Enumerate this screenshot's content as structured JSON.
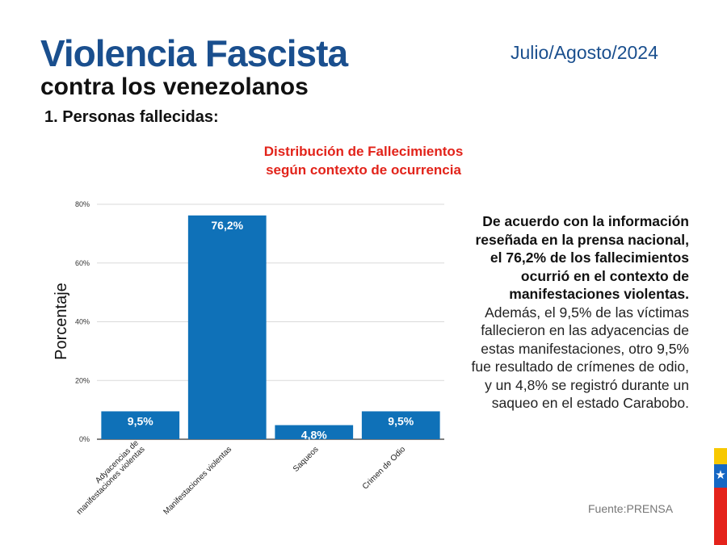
{
  "header": {
    "title": "Violencia Fascista",
    "subtitle": "contra los venezolanos",
    "date": "Julio/Agosto/2024",
    "section": "1. Personas fallecidas:"
  },
  "chart_data": {
    "type": "bar",
    "title_line1": "Distribución de Fallecimientos",
    "title_line2": "según contexto de ocurrencia",
    "categories": [
      "Adyacencias de manifestaciones violentas",
      "Manifestaciones violentas",
      "Saqueos",
      "Crimen de Odio"
    ],
    "category_lines": [
      [
        "Adyacencias de",
        "manifestaciones violentas"
      ],
      [
        "Manifestaciones violentas"
      ],
      [
        "Saqueos"
      ],
      [
        "Crimen de Odio"
      ]
    ],
    "values": [
      9.5,
      76.2,
      4.8,
      9.5
    ],
    "value_labels": [
      "9,5%",
      "76,2%",
      "4,8%",
      "9,5%"
    ],
    "ylabel": "Porcentaje",
    "xlabel": "",
    "ylim": [
      0,
      80
    ],
    "yticks": [
      0,
      20,
      40,
      60,
      80
    ],
    "ytick_labels": [
      "0%",
      "20%",
      "40%",
      "60%",
      "80%"
    ],
    "grid": true,
    "bar_color": "#0f71b8"
  },
  "body_text": {
    "bold": "De acuerdo con la información reseñada en la prensa nacional, el 76,2% de los fallecimientos ocurrió en el contexto de manifestaciones violentas.",
    "normal": " Además, el 9,5% de las víctimas fallecieron en las adyacencias de estas manifestaciones, otro 9,5% fue resultado de crímenes de odio, y un 4,8% se registró durante un saqueo en el estado Carabobo."
  },
  "source": "Fuente:PRENSA",
  "colors": {
    "title_blue": "#1a4f8e",
    "chart_title_red": "#e2231a",
    "flag": [
      "#f7c800",
      "#1567c4",
      "#e4231b"
    ]
  }
}
